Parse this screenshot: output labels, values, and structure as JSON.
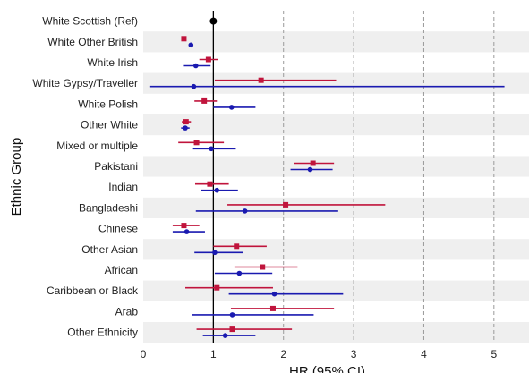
{
  "chart_data": {
    "type": "forest",
    "title": "",
    "xlabel": "HR (95% CI)",
    "ylabel": "Ethnic Group",
    "xlim": [
      0,
      5.5
    ],
    "xticks": [
      0,
      1,
      2,
      3,
      4,
      5
    ],
    "reference_value": 1,
    "grid": "dashed vertical lines at 2, 3, 4, 5; alternating grey row bands",
    "colors": {
      "series_1": "#c0143c",
      "series_2": "#1a1ab0",
      "reference": "#000000",
      "band": "#efefef"
    },
    "categories": [
      "White Scottish (Ref)",
      "White Other British",
      "White Irish",
      "White Gypsy/Traveller",
      "White Polish",
      "Other White",
      "Mixed or multiple",
      "Pakistani",
      "Indian",
      "Bangladeshi",
      "Chinese",
      "Other Asian",
      "African",
      "Caribbean or Black",
      "Arab",
      "Other Ethnicity"
    ],
    "reference_point": {
      "category": "White Scottish (Ref)",
      "hr": 1
    },
    "series": [
      {
        "marker": "square",
        "color": "#c0143c",
        "points": [
          null,
          {
            "hr": 0.58,
            "lo": 0.55,
            "hi": 0.61
          },
          {
            "hr": 0.93,
            "lo": 0.8,
            "hi": 1.06
          },
          {
            "hr": 1.68,
            "lo": 1.02,
            "hi": 2.75
          },
          {
            "hr": 0.87,
            "lo": 0.73,
            "hi": 1.05
          },
          {
            "hr": 0.61,
            "lo": 0.55,
            "hi": 0.68
          },
          {
            "hr": 0.76,
            "lo": 0.5,
            "hi": 1.15
          },
          {
            "hr": 2.42,
            "lo": 2.15,
            "hi": 2.72
          },
          {
            "hr": 0.95,
            "lo": 0.74,
            "hi": 1.22
          },
          {
            "hr": 2.03,
            "lo": 1.2,
            "hi": 3.45
          },
          {
            "hr": 0.58,
            "lo": 0.42,
            "hi": 0.8
          },
          {
            "hr": 1.33,
            "lo": 1.0,
            "hi": 1.76
          },
          {
            "hr": 1.7,
            "lo": 1.3,
            "hi": 2.2
          },
          {
            "hr": 1.05,
            "lo": 0.6,
            "hi": 1.85
          },
          {
            "hr": 1.85,
            "lo": 1.25,
            "hi": 2.72
          },
          {
            "hr": 1.27,
            "lo": 0.76,
            "hi": 2.12
          }
        ]
      },
      {
        "marker": "circle",
        "color": "#1a1ab0",
        "points": [
          null,
          {
            "hr": 0.68,
            "lo": 0.65,
            "hi": 0.71
          },
          {
            "hr": 0.75,
            "lo": 0.58,
            "hi": 0.96
          },
          {
            "hr": 0.72,
            "lo": 0.1,
            "hi": 5.15
          },
          {
            "hr": 1.26,
            "lo": 1.0,
            "hi": 1.6
          },
          {
            "hr": 0.6,
            "lo": 0.54,
            "hi": 0.66
          },
          {
            "hr": 0.97,
            "lo": 0.71,
            "hi": 1.32
          },
          {
            "hr": 2.38,
            "lo": 2.1,
            "hi": 2.7
          },
          {
            "hr": 1.05,
            "lo": 0.82,
            "hi": 1.35
          },
          {
            "hr": 1.45,
            "lo": 0.75,
            "hi": 2.78
          },
          {
            "hr": 0.62,
            "lo": 0.42,
            "hi": 0.88
          },
          {
            "hr": 1.02,
            "lo": 0.73,
            "hi": 1.42
          },
          {
            "hr": 1.37,
            "lo": 1.02,
            "hi": 1.84
          },
          {
            "hr": 1.87,
            "lo": 1.22,
            "hi": 2.85
          },
          {
            "hr": 1.27,
            "lo": 0.7,
            "hi": 2.43
          },
          {
            "hr": 1.17,
            "lo": 0.85,
            "hi": 1.6
          }
        ]
      }
    ]
  }
}
